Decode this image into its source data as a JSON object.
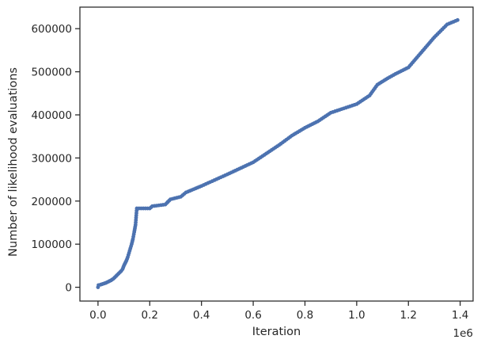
{
  "chart_data": {
    "type": "scatter",
    "xlabel": "Iteration",
    "ylabel": "Number of likelihood evaluations",
    "x_offset_label": "1e6",
    "xlim": [
      -0.07,
      1.45
    ],
    "ylim": [
      -32000,
      650000
    ],
    "x_ticks": [
      0.0,
      0.2,
      0.4,
      0.6,
      0.8,
      1.0,
      1.2,
      1.4
    ],
    "x_tick_labels": [
      "0.0",
      "0.2",
      "0.4",
      "0.6",
      "0.8",
      "1.0",
      "1.2",
      "1.4"
    ],
    "y_ticks": [
      0,
      100000,
      200000,
      300000,
      400000,
      500000,
      600000
    ],
    "y_tick_labels": [
      "0",
      "100000",
      "200000",
      "300000",
      "400000",
      "500000",
      "600000"
    ],
    "marker_color": "#4c72b0",
    "grid": false,
    "series": [
      {
        "points": [
          [
            0.0,
            0
          ],
          [
            0.002,
            5000
          ],
          [
            0.01,
            6000
          ],
          [
            0.02,
            8000
          ],
          [
            0.03,
            10000
          ],
          [
            0.04,
            13000
          ],
          [
            0.05,
            16000
          ],
          [
            0.06,
            20000
          ],
          [
            0.07,
            26000
          ],
          [
            0.08,
            32000
          ],
          [
            0.09,
            38000
          ],
          [
            0.095,
            42000
          ],
          [
            0.1,
            50000
          ],
          [
            0.105,
            56000
          ],
          [
            0.11,
            62000
          ],
          [
            0.115,
            70000
          ],
          [
            0.12,
            80000
          ],
          [
            0.125,
            90000
          ],
          [
            0.13,
            100000
          ],
          [
            0.135,
            112000
          ],
          [
            0.14,
            128000
          ],
          [
            0.145,
            145000
          ],
          [
            0.15,
            183000
          ],
          [
            0.2,
            183000
          ],
          [
            0.21,
            188000
          ],
          [
            0.26,
            192000
          ],
          [
            0.28,
            204000
          ],
          [
            0.32,
            210000
          ],
          [
            0.34,
            220000
          ],
          [
            0.4,
            235000
          ],
          [
            0.5,
            262000
          ],
          [
            0.6,
            290000
          ],
          [
            0.7,
            330000
          ],
          [
            0.75,
            352000
          ],
          [
            0.8,
            370000
          ],
          [
            0.85,
            385000
          ],
          [
            0.9,
            405000
          ],
          [
            0.95,
            415000
          ],
          [
            1.0,
            425000
          ],
          [
            1.05,
            445000
          ],
          [
            1.08,
            470000
          ],
          [
            1.12,
            485000
          ],
          [
            1.15,
            495000
          ],
          [
            1.2,
            510000
          ],
          [
            1.25,
            545000
          ],
          [
            1.3,
            580000
          ],
          [
            1.35,
            610000
          ],
          [
            1.39,
            620000
          ]
        ]
      }
    ]
  }
}
